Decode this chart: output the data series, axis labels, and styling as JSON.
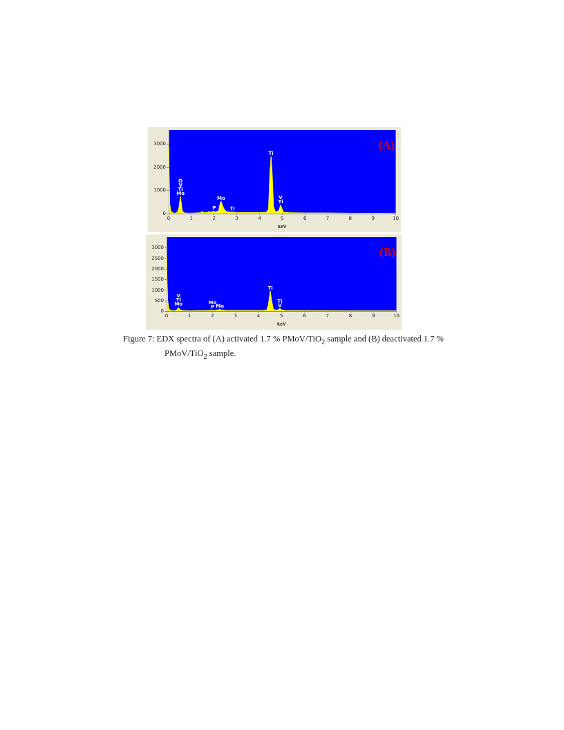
{
  "chart_data": [
    {
      "type": "area",
      "title": "(A)",
      "xlabel": "keV",
      "color": "#ffff00",
      "xlim": [
        0,
        10
      ],
      "xticks": [
        0,
        1,
        2,
        3,
        4,
        5,
        6,
        7,
        8,
        9,
        10
      ],
      "ylim": [
        0,
        3600
      ],
      "yticks": [
        0,
        1000,
        2000,
        3000
      ],
      "grid": false,
      "x": [
        0,
        0.02,
        0.05,
        0.1,
        0.2,
        0.3,
        0.4,
        0.45,
        0.5,
        0.52,
        0.55,
        0.6,
        0.7,
        0.9,
        1.2,
        1.4,
        1.48,
        1.55,
        1.7,
        1.78,
        1.85,
        2.0,
        2.05,
        2.2,
        2.27,
        2.31,
        2.36,
        2.45,
        2.55,
        2.7,
        2.8,
        3.0,
        3.5,
        4.0,
        4.3,
        4.4,
        4.46,
        4.51,
        4.56,
        4.62,
        4.7,
        4.85,
        4.93,
        4.98,
        5.05,
        5.3,
        6,
        7,
        8,
        9,
        10
      ],
      "values": [
        2850,
        1800,
        400,
        100,
        30,
        20,
        80,
        250,
        600,
        730,
        500,
        120,
        30,
        20,
        30,
        40,
        100,
        40,
        50,
        90,
        60,
        110,
        70,
        120,
        450,
        530,
        380,
        180,
        90,
        60,
        70,
        50,
        50,
        50,
        60,
        200,
        1800,
        2450,
        1700,
        300,
        80,
        120,
        370,
        250,
        60,
        40,
        30,
        30,
        20,
        20,
        10
      ],
      "annotations": [
        {
          "text": "O",
          "x": 0.52,
          "y": 730
        },
        {
          "text": "V",
          "x": 0.52,
          "y": 730
        },
        {
          "text": "Ti",
          "x": 0.52,
          "y": 730
        },
        {
          "text": "Mo",
          "x": 0.52,
          "y": 730
        },
        {
          "text": "P",
          "x": 2.0,
          "y": 110
        },
        {
          "text": "Mo",
          "x": 2.31,
          "y": 530
        },
        {
          "text": "Ti",
          "x": 2.8,
          "y": 70
        },
        {
          "text": "Ti",
          "x": 4.51,
          "y": 2450
        },
        {
          "text": "V",
          "x": 4.93,
          "y": 370
        },
        {
          "text": "Ti",
          "x": 4.93,
          "y": 370
        }
      ]
    },
    {
      "type": "area",
      "title": "(B)",
      "xlabel": "keV",
      "color": "#ffff00",
      "xlim": [
        0,
        10
      ],
      "xticks": [
        0,
        1,
        2,
        3,
        4,
        5,
        6,
        7,
        8,
        9,
        10
      ],
      "ylim": [
        0,
        3500
      ],
      "yticks": [
        0,
        500,
        1000,
        1500,
        2000,
        2500,
        3000
      ],
      "grid": false,
      "x": [
        0,
        0.02,
        0.05,
        0.1,
        0.2,
        0.35,
        0.45,
        0.52,
        0.57,
        0.7,
        1.0,
        1.5,
        1.8,
        2.0,
        2.1,
        2.27,
        2.32,
        2.4,
        2.6,
        3,
        4,
        4.35,
        4.43,
        4.51,
        4.57,
        4.65,
        4.8,
        4.93,
        5.0,
        5.2,
        6,
        8,
        10
      ],
      "values": [
        2550,
        1500,
        500,
        100,
        30,
        20,
        60,
        170,
        80,
        20,
        10,
        20,
        30,
        40,
        30,
        70,
        80,
        50,
        30,
        30,
        30,
        40,
        300,
        950,
        500,
        80,
        40,
        130,
        60,
        20,
        20,
        10,
        10
      ],
      "annotations": [
        {
          "text": "V",
          "x": 0.52,
          "y": 170
        },
        {
          "text": "Ti",
          "x": 0.52,
          "y": 170
        },
        {
          "text": "Mo",
          "x": 0.52,
          "y": 170
        },
        {
          "text": "Mo",
          "x": 2.0,
          "y": 40
        },
        {
          "text": "P",
          "x": 2.0,
          "y": 40
        },
        {
          "text": "Mo",
          "x": 2.32,
          "y": 80
        },
        {
          "text": "Ti",
          "x": 4.51,
          "y": 950
        },
        {
          "text": "Ti",
          "x": 4.93,
          "y": 130
        },
        {
          "text": "V",
          "x": 4.93,
          "y": 130
        },
        "Figure 7: EDX spectra of (A) activated 1.7 % PMoV/TiO$_{2}$ sample and (B) deactivated 1.7 % PMoV/TiO$_{2}$ sample."
      ]
    }
  ]
}
